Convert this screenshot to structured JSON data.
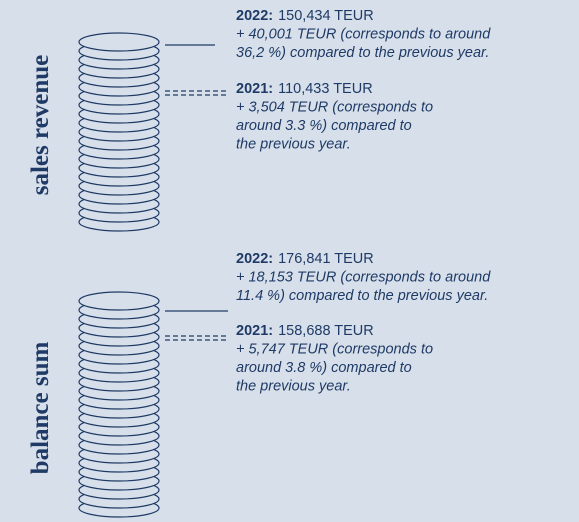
{
  "sections": [
    {
      "label": "sales revenue",
      "entries": [
        {
          "year": "2022:",
          "value": "150,434 TEUR",
          "lines": [
            "+ 40,001 TEUR (corresponds to around",
            "36,2 %) compared to the previous year."
          ]
        },
        {
          "year": "2021:",
          "value": "110,433 TEUR",
          "lines": [
            "+ 3,504 TEUR (corresponds to",
            "around 3.3 %) compared to",
            "the previous year."
          ]
        }
      ]
    },
    {
      "label": "balance sum",
      "entries": [
        {
          "year": "2022:",
          "value": "176,841 TEUR",
          "lines": [
            "+ 18,153 TEUR (corresponds to around",
            "11.4 %) compared to the previous year."
          ]
        },
        {
          "year": "2021:",
          "value": "158,688 TEUR",
          "lines": [
            "+ 5,747 TEUR (corresponds to",
            "around 3.8 %) compared to",
            "the previous year."
          ]
        }
      ]
    }
  ]
}
